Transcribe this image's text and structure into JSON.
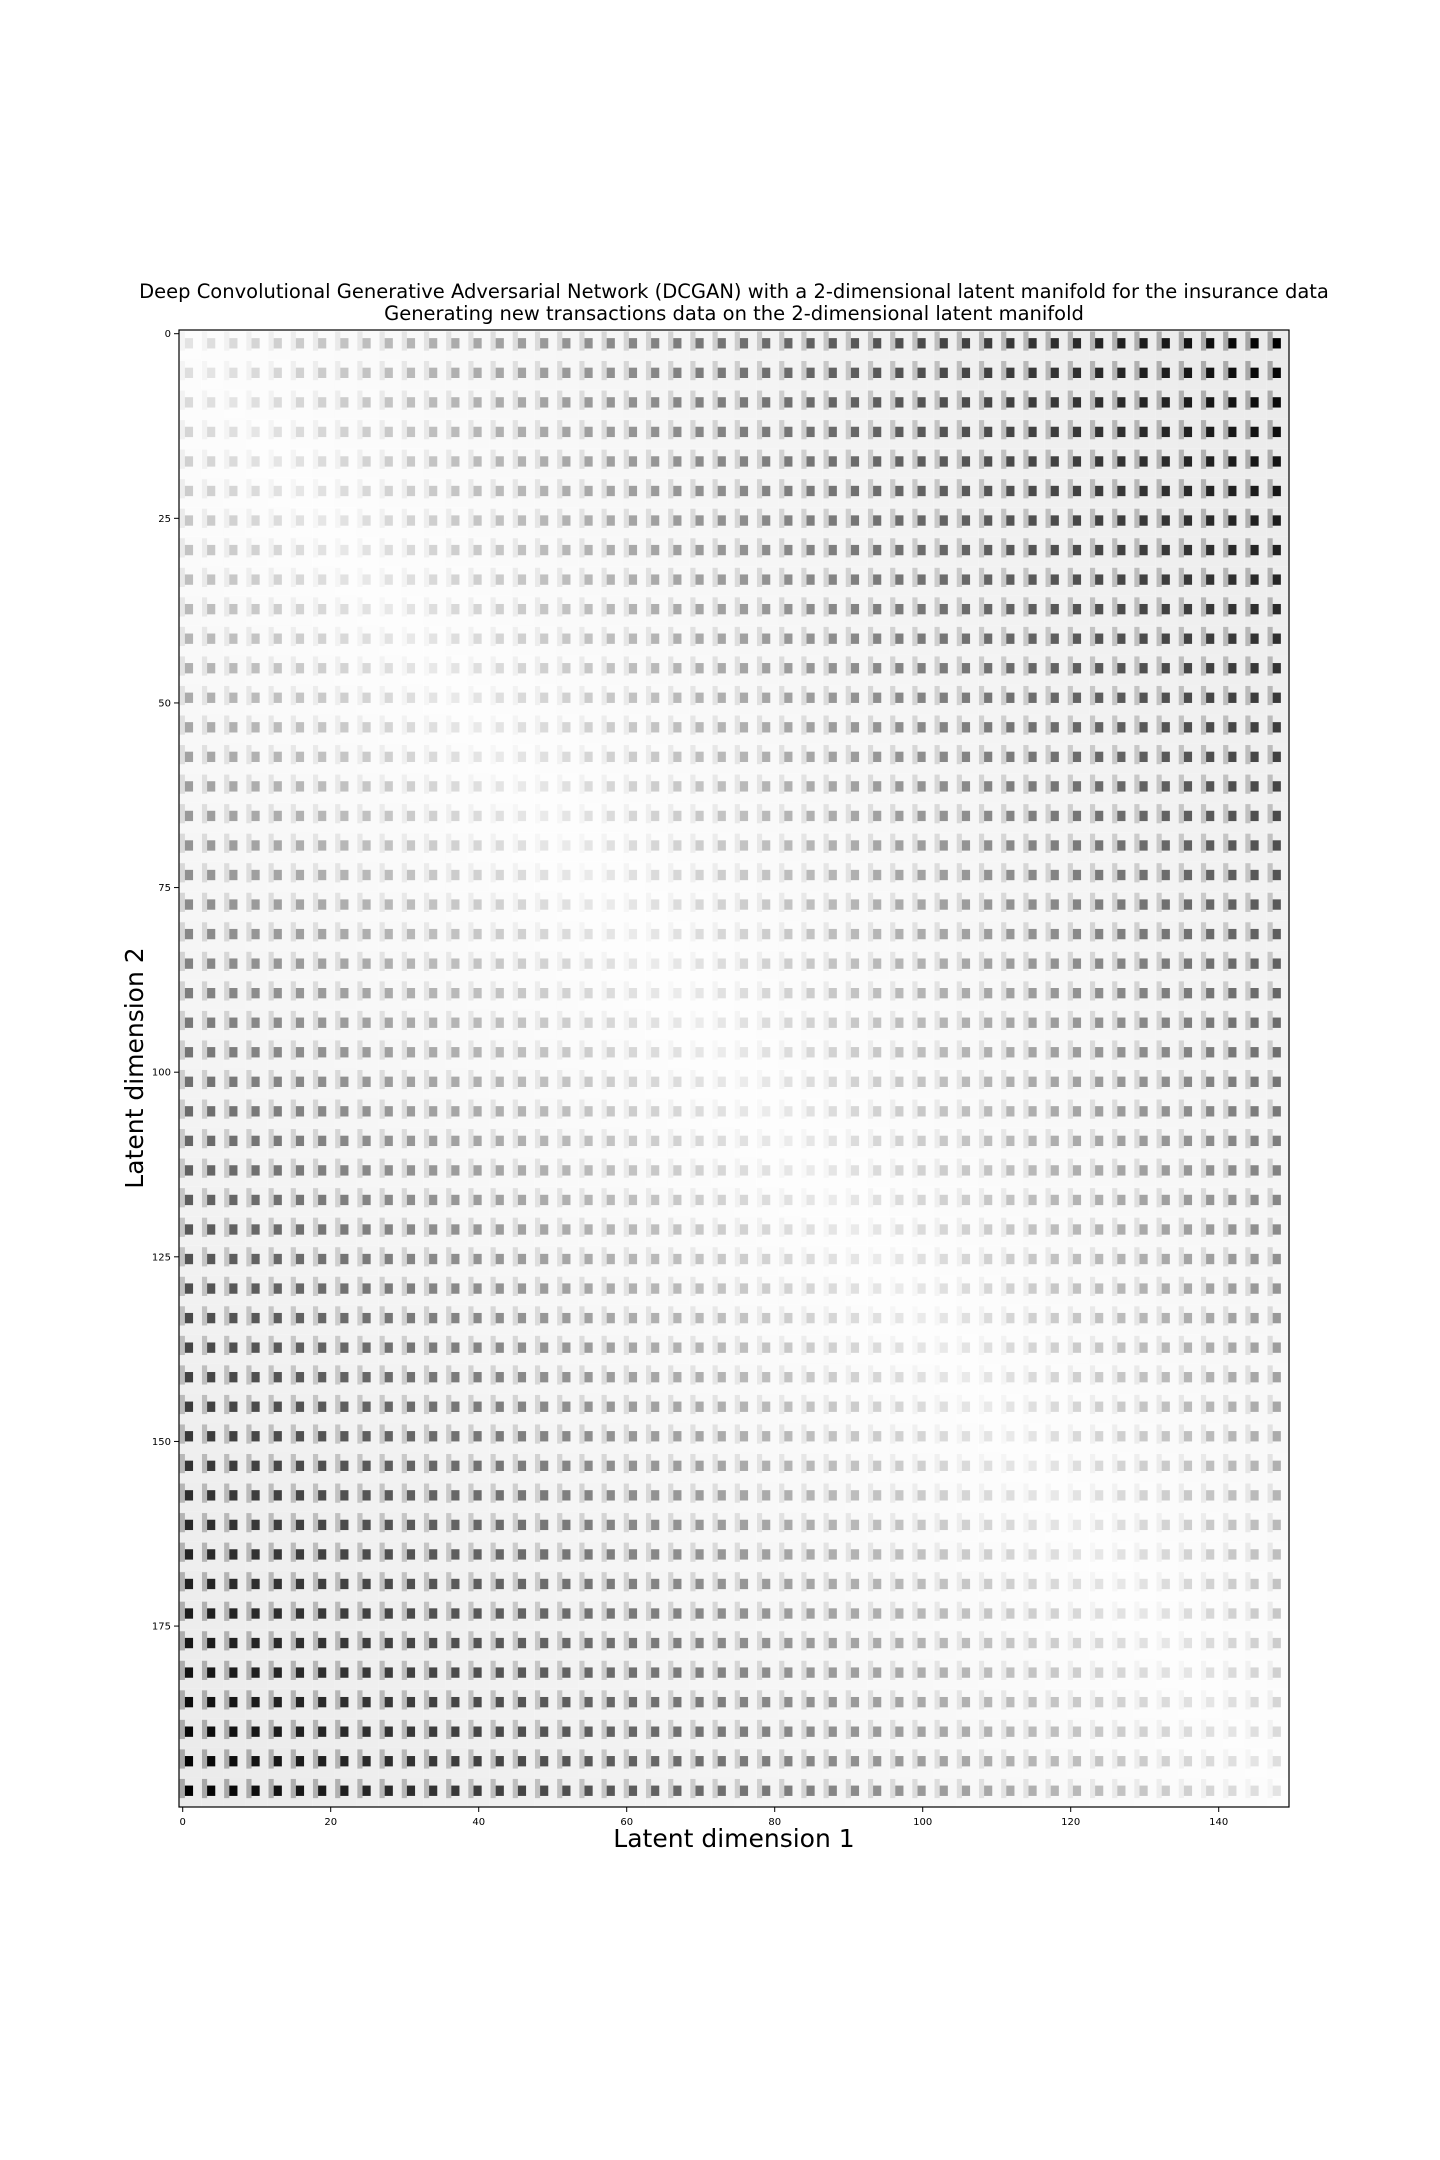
{
  "figure": {
    "title": "Deep Convolutional Generative Adversarial Network (DCGAN) with a 2-dimensional latent manifold for the insurance data",
    "subtitle": "Generating new transactions data on the 2-dimensional latent manifold"
  },
  "chart_data": {
    "type": "heatmap",
    "colormap": "Greys",
    "background": "#ffffff",
    "title": "Deep Convolutional Generative Adversarial Network (DCGAN) with a 2-dimensional latent manifold for the insurance data",
    "subtitle": "Generating new transactions data on the 2-dimensional latent manifold",
    "xlabel": "Latent dimension 1",
    "ylabel": "Latent dimension 2",
    "xlim": [
      0,
      149
    ],
    "ylim": [
      199,
      0
    ],
    "x_ticks": [
      0,
      20,
      40,
      60,
      80,
      100,
      120,
      140
    ],
    "y_ticks": [
      0,
      25,
      50,
      75,
      100,
      125,
      150,
      175
    ],
    "x_tick_labels": [
      "0",
      "20",
      "40",
      "60",
      "80",
      "100",
      "120",
      "140"
    ],
    "y_tick_labels": [
      "0",
      "25",
      "50",
      "75",
      "100",
      "125",
      "150",
      "175"
    ],
    "grid": false,
    "tile_size": [
      3,
      4
    ],
    "tile_grid": [
      50,
      50
    ],
    "intensity": {
      "description": "darkest at top-right and bottom-left corners, lightest along the anti-diagonal",
      "top_left": 0.12,
      "top_right": 1.0,
      "bottom_left": 1.0,
      "bottom_right": 0.12,
      "center": 0.05
    }
  }
}
